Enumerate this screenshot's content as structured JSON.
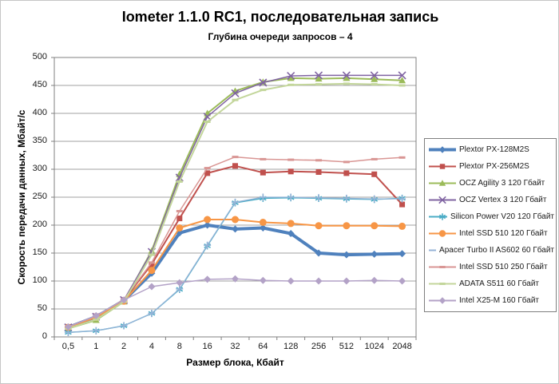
{
  "chart_data": {
    "type": "line",
    "title": "Iometer 1.1.0 RC1, последовательная запись",
    "subtitle": "Глубина очереди запросов – 4",
    "xlabel": "Размер блока, Кбайт",
    "ylabel": "Скорость передачи данных, Мбайт/с",
    "categories": [
      "0,5",
      "1",
      "2",
      "4",
      "8",
      "16",
      "32",
      "64",
      "128",
      "256",
      "512",
      "1024",
      "2048"
    ],
    "ylim": [
      0,
      500
    ],
    "ytick_step": 50,
    "grid": true,
    "legend_position": "right",
    "colors": {
      "gridline": "#a0a0a0",
      "plot_border": "#808080",
      "background": "#ffffff"
    },
    "series": [
      {
        "id": "plextor-px-128m2s",
        "name": "Plextor PX-128M2S",
        "color": "#4F81BD",
        "marker": "diamond",
        "line_width": 4,
        "values": [
          17,
          36,
          65,
          114,
          186,
          200,
          193,
          195,
          185,
          150,
          147,
          148,
          149
        ]
      },
      {
        "id": "plextor-px-256m2s",
        "name": "Plextor PX-256M2S",
        "color": "#C0504D",
        "marker": "square",
        "line_width": 2,
        "values": [
          18,
          37,
          66,
          130,
          212,
          293,
          306,
          294,
          296,
          295,
          293,
          291,
          237
        ]
      },
      {
        "id": "ocz-agility-3-120",
        "name": "OCZ Agility 3 120 Гбайт",
        "color": "#9BBB59",
        "marker": "triangle",
        "line_width": 2,
        "values": [
          15,
          30,
          63,
          154,
          291,
          400,
          440,
          456,
          463,
          462,
          463,
          461,
          459
        ]
      },
      {
        "id": "ocz-vertex-3-120",
        "name": "OCZ Vertex 3 120 Гбайт",
        "color": "#8064A2",
        "marker": "x",
        "line_width": 1.5,
        "values": [
          17,
          36,
          66,
          152,
          285,
          394,
          436,
          455,
          467,
          468,
          468,
          468,
          468
        ]
      },
      {
        "id": "silicon-power-v20-120",
        "name": "Silicon Power V20 120 Гбайт",
        "color": "#4BACC6",
        "marker": "asterisk",
        "line_width": 1.5,
        "values": [
          8,
          11,
          20,
          42,
          85,
          163,
          240,
          248,
          249,
          248,
          247,
          246,
          248
        ]
      },
      {
        "id": "intel-ssd-510-120",
        "name": "Intel SSD 510 120 Гбайт",
        "color": "#F79646",
        "marker": "circle",
        "line_width": 2,
        "values": [
          17,
          35,
          64,
          119,
          195,
          210,
          210,
          205,
          203,
          199,
          199,
          199,
          198
        ]
      },
      {
        "id": "apacer-turbo-ii-as602-60",
        "name": "Apacer Turbo II AS602 60 Гбайт",
        "color": "#95B3D7",
        "marker": "plus",
        "line_width": 1.25,
        "values": [
          8,
          11,
          20,
          42,
          86,
          164,
          241,
          250,
          250,
          249,
          248,
          247,
          247
        ]
      },
      {
        "id": "intel-ssd-510-250",
        "name": "Intel SSD 510 250 Гбайт",
        "color": "#D99694",
        "marker": "dash",
        "line_width": 1.5,
        "values": [
          18,
          37,
          67,
          133,
          225,
          302,
          322,
          318,
          317,
          316,
          313,
          318,
          321
        ]
      },
      {
        "id": "adata-s511-60",
        "name": "ADATA S511 60 Гбайт",
        "color": "#C3D69B",
        "marker": "dash",
        "line_width": 2,
        "values": [
          15,
          31,
          63,
          147,
          278,
          385,
          424,
          442,
          451,
          452,
          453,
          452,
          450
        ]
      },
      {
        "id": "intel-x25-m-160",
        "name": "Intel X25-M 160 Гбайт",
        "color": "#B3A2C7",
        "marker": "diamond",
        "line_width": 1.5,
        "values": [
          18,
          38,
          66,
          90,
          97,
          103,
          104,
          101,
          100,
          100,
          100,
          101,
          100
        ]
      }
    ]
  }
}
